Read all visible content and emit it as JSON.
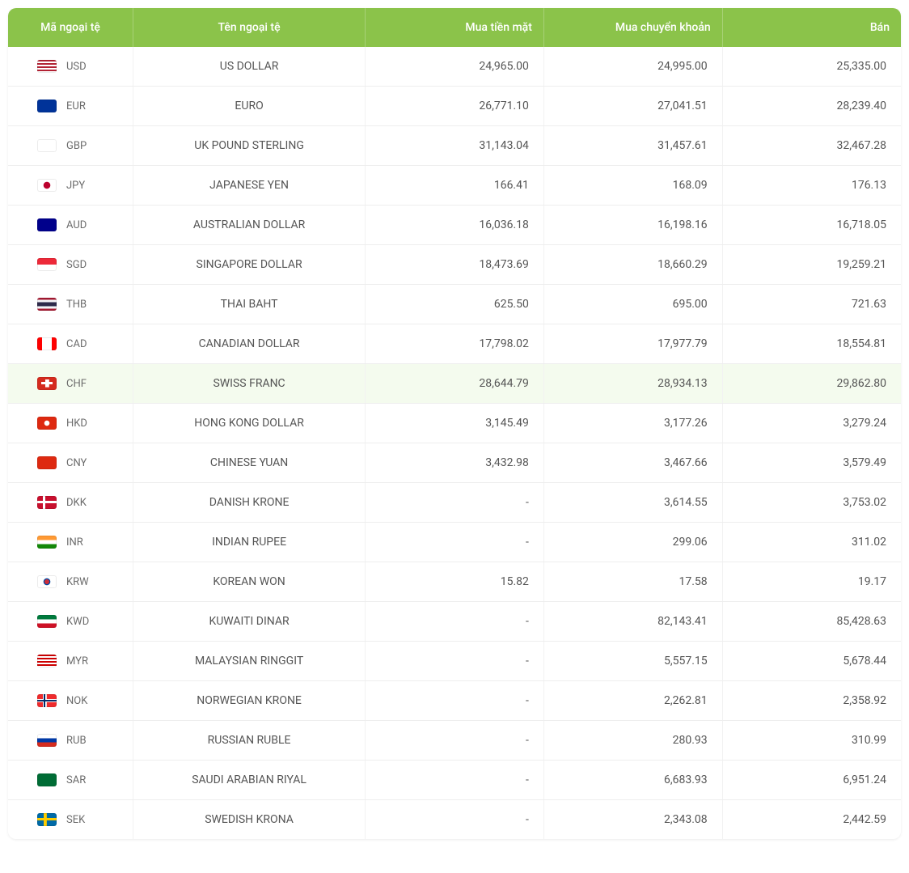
{
  "table": {
    "header_bg": "#8bc34a",
    "header_fg": "#ffffff",
    "row_border": "#eeeeee",
    "highlight_bg": "#f4fbee",
    "text_color": "#555555",
    "columns": [
      {
        "key": "code",
        "label": "Mã ngoại tệ",
        "class": "col-code"
      },
      {
        "key": "name",
        "label": "Tên ngoại tệ",
        "class": "col-name"
      },
      {
        "key": "cash",
        "label": "Mua tiền mặt",
        "class": "col-num"
      },
      {
        "key": "transfer",
        "label": "Mua chuyển khoản",
        "class": "col-num"
      },
      {
        "key": "sell",
        "label": "Bán",
        "class": "col-num"
      }
    ],
    "rows": [
      {
        "code": "USD",
        "name": "US DOLLAR",
        "cash": "24,965.00",
        "transfer": "24,995.00",
        "sell": "25,335.00",
        "flag": "usd"
      },
      {
        "code": "EUR",
        "name": "EURO",
        "cash": "26,771.10",
        "transfer": "27,041.51",
        "sell": "28,239.40",
        "flag": "eur"
      },
      {
        "code": "GBP",
        "name": "UK POUND STERLING",
        "cash": "31,143.04",
        "transfer": "31,457.61",
        "sell": "32,467.28",
        "flag": "gbp"
      },
      {
        "code": "JPY",
        "name": "JAPANESE YEN",
        "cash": "166.41",
        "transfer": "168.09",
        "sell": "176.13",
        "flag": "jpy"
      },
      {
        "code": "AUD",
        "name": "AUSTRALIAN DOLLAR",
        "cash": "16,036.18",
        "transfer": "16,198.16",
        "sell": "16,718.05",
        "flag": "aud"
      },
      {
        "code": "SGD",
        "name": "SINGAPORE DOLLAR",
        "cash": "18,473.69",
        "transfer": "18,660.29",
        "sell": "19,259.21",
        "flag": "sgd"
      },
      {
        "code": "THB",
        "name": "THAI BAHT",
        "cash": "625.50",
        "transfer": "695.00",
        "sell": "721.63",
        "flag": "thb"
      },
      {
        "code": "CAD",
        "name": "CANADIAN DOLLAR",
        "cash": "17,798.02",
        "transfer": "17,977.79",
        "sell": "18,554.81",
        "flag": "cad"
      },
      {
        "code": "CHF",
        "name": "SWISS FRANC",
        "cash": "28,644.79",
        "transfer": "28,934.13",
        "sell": "29,862.80",
        "flag": "chf",
        "highlight": true
      },
      {
        "code": "HKD",
        "name": "HONG KONG DOLLAR",
        "cash": "3,145.49",
        "transfer": "3,177.26",
        "sell": "3,279.24",
        "flag": "hkd"
      },
      {
        "code": "CNY",
        "name": "CHINESE YUAN",
        "cash": "3,432.98",
        "transfer": "3,467.66",
        "sell": "3,579.49",
        "flag": "cny"
      },
      {
        "code": "DKK",
        "name": "DANISH KRONE",
        "cash": "-",
        "transfer": "3,614.55",
        "sell": "3,753.02",
        "flag": "dkk"
      },
      {
        "code": "INR",
        "name": "INDIAN RUPEE",
        "cash": "-",
        "transfer": "299.06",
        "sell": "311.02",
        "flag": "inr"
      },
      {
        "code": "KRW",
        "name": "KOREAN WON",
        "cash": "15.82",
        "transfer": "17.58",
        "sell": "19.17",
        "flag": "krw"
      },
      {
        "code": "KWD",
        "name": "KUWAITI DINAR",
        "cash": "-",
        "transfer": "82,143.41",
        "sell": "85,428.63",
        "flag": "kwd"
      },
      {
        "code": "MYR",
        "name": "MALAYSIAN RINGGIT",
        "cash": "-",
        "transfer": "5,557.15",
        "sell": "5,678.44",
        "flag": "myr"
      },
      {
        "code": "NOK",
        "name": "NORWEGIAN KRONE",
        "cash": "-",
        "transfer": "2,262.81",
        "sell": "2,358.92",
        "flag": "nok"
      },
      {
        "code": "RUB",
        "name": "RUSSIAN RUBLE",
        "cash": "-",
        "transfer": "280.93",
        "sell": "310.99",
        "flag": "rub"
      },
      {
        "code": "SAR",
        "name": "SAUDI ARABIAN RIYAL",
        "cash": "-",
        "transfer": "6,683.93",
        "sell": "6,951.24",
        "flag": "sar"
      },
      {
        "code": "SEK",
        "name": "SWEDISH KRONA",
        "cash": "-",
        "transfer": "2,343.08",
        "sell": "2,442.59",
        "flag": "sek"
      }
    ]
  },
  "flags": {
    "usd": "repeating-linear-gradient(180deg,#b22234 0 2px,#fff 2px 4px), linear-gradient(#3c3b6e,#3c3b6e)",
    "usd_pos": "bottom,left top",
    "usd_size": "100% 100%,46% 54%",
    "eur": "radial-gradient(circle at 50% 50%, transparent 4px, #003399 5px), repeating-conic-gradient(#ffcc00 0 30deg, #003399 30deg 60deg)",
    "eur_simple": "#003399",
    "gbp": "linear-gradient(#fff,#fff), linear-gradient(#cf142b,#cf142b), linear-gradient(#cf142b,#cf142b), linear-gradient(#00247d,#00247d)",
    "gbp_pos": "center,center,center,center",
    "gbp_size": "100% 100%,100% 20%,12% 100%,100% 100%",
    "jpy": "radial-gradient(circle at 50% 50%, #bc002d 0 4px, #fff 4.5px)",
    "aud": "linear-gradient(#00008b,#00008b)",
    "sgd": "linear-gradient(180deg,#ed2939 0 50%,#fff 50% 100%)",
    "thb": "linear-gradient(180deg,#a51931 0 16%,#f4f5f8 16% 33%,#2d2a4a 33% 67%,#f4f5f8 67% 84%,#a51931 84% 100%)",
    "cad": "linear-gradient(90deg,#ff0000 0 25%,#fff 25% 75%,#ff0000 75% 100%)",
    "chf": "linear-gradient(#fff,#fff), linear-gradient(#fff,#fff), linear-gradient(#d52b1e,#d52b1e)",
    "chf_pos": "center,center,center",
    "chf_size": "60% 20%,20% 60%,100% 100%",
    "hkd": "radial-gradient(circle at 50% 50%, #fff 0 3px, #de2910 3.5px)",
    "cny": "linear-gradient(#de2910,#de2910)",
    "dkk": "linear-gradient(#fff,#fff), linear-gradient(#fff,#fff), linear-gradient(#c8102e,#c8102e)",
    "dkk_pos": "center,35% center,center",
    "dkk_size": "100% 20%,14% 100%,100% 100%",
    "inr": "linear-gradient(180deg,#ff9933 0 33%,#fff 33% 67%,#138808 67% 100%)",
    "krw": "radial-gradient(circle at 50% 50%, #cd2e3a 0 3px, #0047a0 3px 4px, #fff 4.5px)",
    "kwd": "linear-gradient(180deg,#007a3d 0 33%,#fff 33% 67%,#ce1126 67% 100%), linear-gradient(110deg,#000 0 28%,transparent 28%)",
    "kwd_pos": "center,left center",
    "kwd_size": "100% 100%,100% 100%",
    "myr": "repeating-linear-gradient(180deg,#cc0001 0 2px,#fff 2px 4px), linear-gradient(#010066,#010066)",
    "myr_pos": "bottom,left top",
    "myr_size": "100% 100%,50% 57%",
    "nok": "linear-gradient(#002868,#002868), linear-gradient(#002868,#002868), linear-gradient(#fff,#fff), linear-gradient(#fff,#fff), linear-gradient(#ef2b2d,#ef2b2d)",
    "nok_pos": "center,38% center,center,38% center,center",
    "nok_size": "100% 12%,10% 100%,100% 24%,20% 100%,100% 100%",
    "rub": "linear-gradient(180deg,#fff 0 33%,#0039a6 33% 67%,#d52b1e 67% 100%)",
    "sar": "linear-gradient(#006c35,#006c35)",
    "sek": "linear-gradient(#fecc00,#fecc00), linear-gradient(#fecc00,#fecc00), linear-gradient(#006aa7,#006aa7)",
    "sek_pos": "center,38% center,center",
    "sek_size": "100% 20%,16% 100%,100% 100%"
  }
}
